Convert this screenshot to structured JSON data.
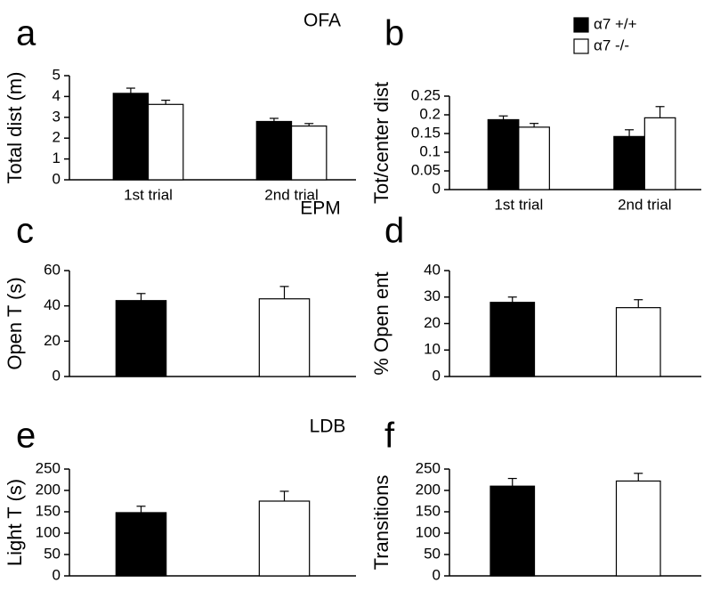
{
  "chart_data": [
    {
      "type": "bar",
      "label": "a",
      "title": "OFA",
      "ylabel": "Total dist (m)",
      "categories": [
        "1st trial",
        "2nd trial"
      ],
      "series": [
        {
          "color": "#000000",
          "values": [
            4.15,
            2.8
          ],
          "errors": [
            0.25,
            0.15
          ]
        },
        {
          "color": "#ffffff",
          "values": [
            3.62,
            2.58
          ],
          "errors": [
            0.2,
            0.12
          ]
        }
      ],
      "ylim": [
        0,
        5
      ],
      "yticks": [
        0,
        1,
        2,
        3,
        4,
        5
      ]
    },
    {
      "type": "bar",
      "label": "b",
      "ylabel": "Tot/center dist",
      "categories": [
        "1st trial",
        "2nd trial"
      ],
      "series": [
        {
          "name": "α7 +/+",
          "color": "#000000",
          "values": [
            0.187,
            0.142
          ],
          "errors": [
            0.01,
            0.018
          ]
        },
        {
          "name": "α7 -/-",
          "color": "#ffffff",
          "values": [
            0.167,
            0.192
          ],
          "errors": [
            0.01,
            0.03
          ]
        }
      ],
      "ylim": [
        0,
        0.25
      ],
      "yticks": [
        0,
        0.05,
        0.1,
        0.15,
        0.2,
        0.25
      ]
    },
    {
      "type": "bar",
      "label": "c",
      "title": "EPM",
      "ylabel": "Open T (s)",
      "categories": [
        null
      ],
      "series": [
        {
          "color": "#000000",
          "values": [
            43
          ],
          "errors": [
            4
          ]
        },
        {
          "color": "#ffffff",
          "values": [
            44
          ],
          "errors": [
            7
          ]
        }
      ],
      "ylim": [
        0,
        60
      ],
      "yticks": [
        0,
        20,
        40,
        60
      ]
    },
    {
      "type": "bar",
      "label": "d",
      "ylabel": "% Open ent",
      "categories": [
        null
      ],
      "series": [
        {
          "color": "#000000",
          "values": [
            28
          ],
          "errors": [
            2
          ]
        },
        {
          "color": "#ffffff",
          "values": [
            26
          ],
          "errors": [
            3
          ]
        }
      ],
      "ylim": [
        0,
        40
      ],
      "yticks": [
        0,
        10,
        20,
        30,
        40
      ]
    },
    {
      "type": "bar",
      "label": "e",
      "title": "LDB",
      "ylabel": "Light T (s)",
      "categories": [
        null
      ],
      "series": [
        {
          "color": "#000000",
          "values": [
            148
          ],
          "errors": [
            15
          ]
        },
        {
          "color": "#ffffff",
          "values": [
            175
          ],
          "errors": [
            23
          ]
        }
      ],
      "ylim": [
        0,
        250
      ],
      "yticks": [
        0,
        50,
        100,
        150,
        200,
        250
      ]
    },
    {
      "type": "bar",
      "label": "f",
      "ylabel": "Transitions",
      "categories": [
        null
      ],
      "series": [
        {
          "color": "#000000",
          "values": [
            210
          ],
          "errors": [
            18
          ]
        },
        {
          "color": "#ffffff",
          "values": [
            222
          ],
          "errors": [
            18
          ]
        }
      ],
      "ylim": [
        0,
        250
      ],
      "yticks": [
        0,
        50,
        100,
        150,
        200,
        250
      ]
    }
  ]
}
